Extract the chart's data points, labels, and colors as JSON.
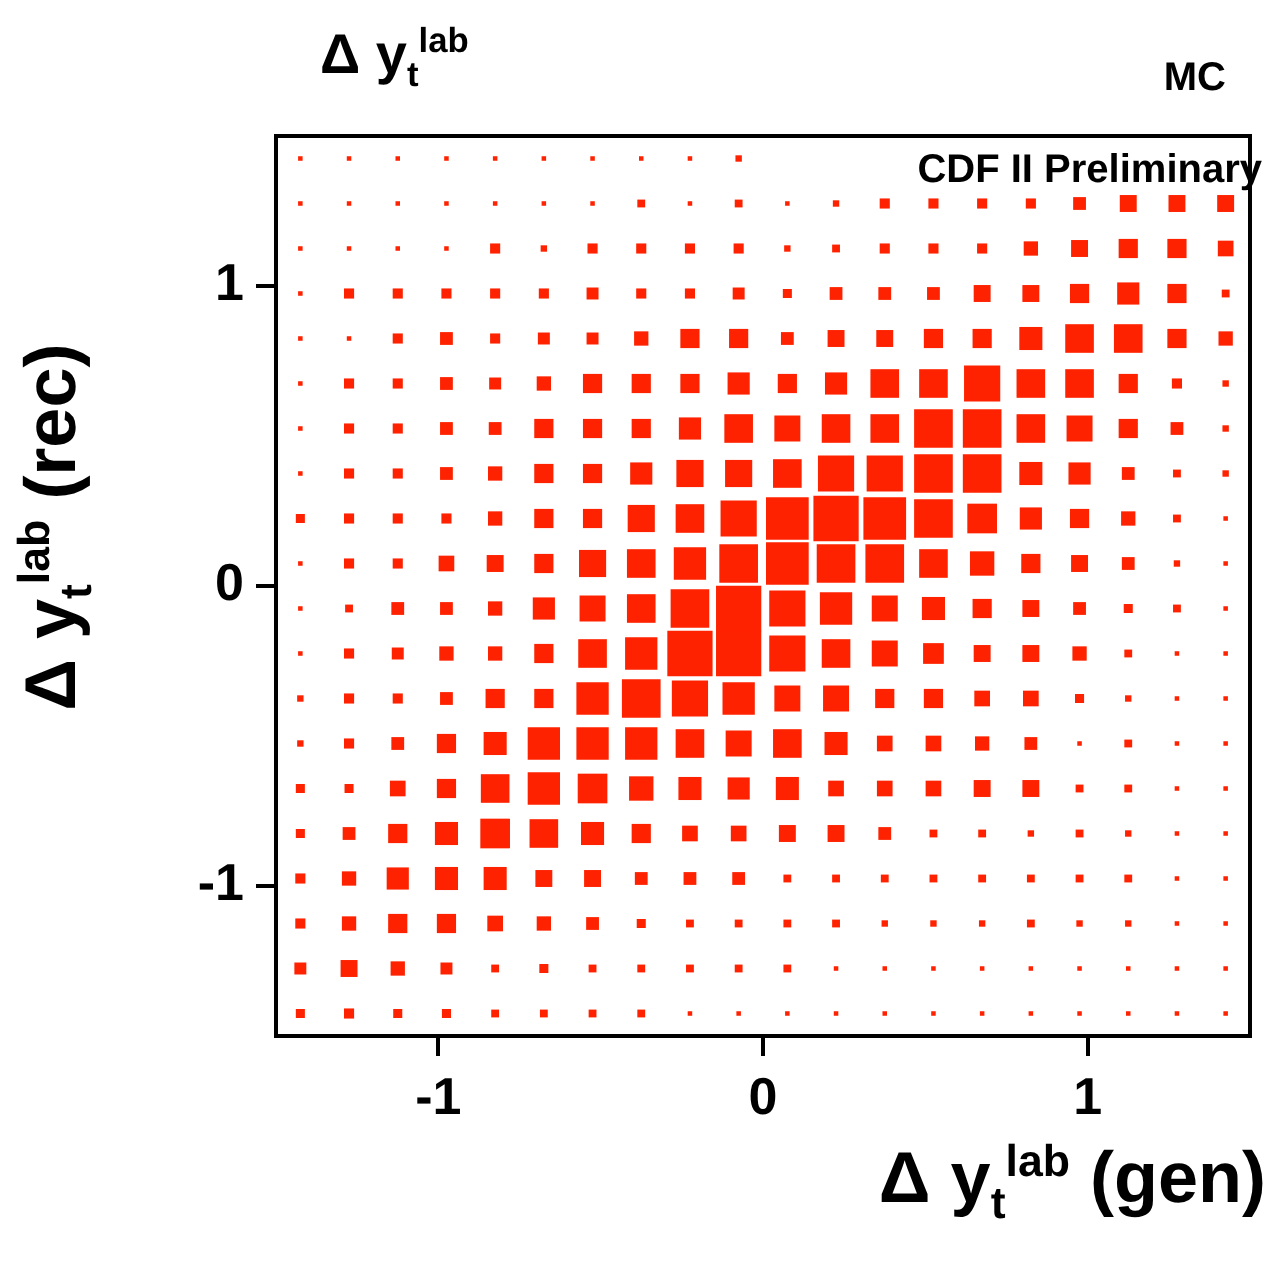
{
  "chart_data": {
    "type": "bubble",
    "title": "Δ y$_{t}$$^{lab}$",
    "xlabel": "Δ y$_{t}$$^{lab}$ (gen)",
    "ylabel": "Δ y$_{t}$$^{lab}$ (rec)",
    "annotations": [
      "MC",
      "CDF II Preliminary"
    ],
    "marker": "square",
    "xlim": [
      -1.5,
      1.5
    ],
    "ylim": [
      -1.5,
      1.5
    ],
    "xticks": [
      -1,
      0,
      1
    ],
    "yticks": [
      -1,
      0,
      1
    ],
    "x": [
      -1.425,
      -1.275,
      -1.125,
      -0.975,
      -0.825,
      -0.675,
      -0.525,
      -0.375,
      -0.225,
      -0.075,
      0.075,
      0.225,
      0.375,
      0.525,
      0.675,
      0.825,
      0.975,
      1.125,
      1.275,
      1.425
    ],
    "series": [
      {
        "color": "#ff2200",
        "values": [
          1.425,
          1.425,
          1.425,
          1.425,
          1.425,
          1.425,
          1.425,
          1.425,
          1.425,
          1.425,
          null,
          null,
          null,
          null,
          null,
          null,
          null,
          null,
          null,
          null
        ],
        "sizes": [
          0.01,
          0.01,
          0.01,
          0.01,
          0.01,
          0.01,
          0.01,
          0.01,
          0.01,
          0.02,
          null,
          null,
          null,
          null,
          null,
          null,
          null,
          null,
          null,
          null
        ]
      },
      {
        "color": "#ff2200",
        "values": [
          1.275,
          1.275,
          1.275,
          1.275,
          1.275,
          1.275,
          1.275,
          1.275,
          1.275,
          1.275,
          1.275,
          1.275,
          1.275,
          1.275,
          1.275,
          1.275,
          1.275,
          1.275,
          1.275,
          1.275
        ],
        "sizes": [
          0.01,
          0.01,
          0.01,
          0.01,
          0.01,
          0.01,
          0.01,
          0.03,
          0.01,
          0.03,
          0.01,
          0.02,
          0.05,
          0.05,
          0.05,
          0.05,
          0.08,
          0.14,
          0.14,
          0.14
        ]
      },
      {
        "color": "#ff2200",
        "values": [
          1.125,
          1.125,
          1.125,
          1.125,
          1.125,
          1.125,
          1.125,
          1.125,
          1.125,
          1.125,
          1.125,
          1.125,
          1.125,
          1.125,
          1.125,
          1.125,
          1.125,
          1.125,
          1.125,
          1.125
        ],
        "sizes": [
          0.01,
          0.01,
          0.01,
          0.01,
          0.05,
          0.02,
          0.05,
          0.05,
          0.05,
          0.05,
          0.02,
          0.03,
          0.05,
          0.05,
          0.05,
          0.1,
          0.14,
          0.18,
          0.18,
          0.12
        ]
      },
      {
        "color": "#ff2200",
        "values": [
          0.975,
          0.975,
          0.975,
          0.975,
          0.975,
          0.975,
          0.975,
          0.975,
          0.975,
          0.975,
          0.975,
          0.975,
          0.975,
          0.975,
          0.975,
          0.975,
          0.975,
          0.975,
          0.975,
          0.975
        ],
        "sizes": [
          0.01,
          0.05,
          0.05,
          0.05,
          0.05,
          0.05,
          0.07,
          0.05,
          0.05,
          0.07,
          0.04,
          0.08,
          0.08,
          0.08,
          0.14,
          0.14,
          0.18,
          0.24,
          0.18,
          0.03
        ]
      },
      {
        "color": "#ff2200",
        "values": [
          0.825,
          0.825,
          0.825,
          0.825,
          0.825,
          0.825,
          0.825,
          0.825,
          0.825,
          0.825,
          0.825,
          0.825,
          0.825,
          0.825,
          0.825,
          0.825,
          0.825,
          0.825,
          0.825,
          0.825
        ],
        "sizes": [
          0.01,
          0.01,
          0.05,
          0.08,
          0.05,
          0.07,
          0.07,
          0.1,
          0.18,
          0.18,
          0.08,
          0.14,
          0.14,
          0.18,
          0.18,
          0.26,
          0.4,
          0.4,
          0.18,
          0.1
        ]
      },
      {
        "color": "#ff2200",
        "values": [
          0.675,
          0.675,
          0.675,
          0.675,
          0.675,
          0.675,
          0.675,
          0.675,
          0.675,
          0.675,
          0.675,
          0.675,
          0.675,
          0.675,
          0.675,
          0.675,
          0.675,
          0.675,
          0.675,
          0.675
        ],
        "sizes": [
          0.01,
          0.05,
          0.05,
          0.08,
          0.07,
          0.1,
          0.18,
          0.18,
          0.18,
          0.24,
          0.18,
          0.24,
          0.4,
          0.4,
          0.64,
          0.4,
          0.4,
          0.18,
          0.05,
          0.02
        ]
      },
      {
        "color": "#ff2200",
        "values": [
          0.525,
          0.525,
          0.525,
          0.525,
          0.525,
          0.525,
          0.525,
          0.525,
          0.525,
          0.525,
          0.525,
          0.525,
          0.525,
          0.525,
          0.525,
          0.525,
          0.525,
          0.525,
          0.525,
          0.525
        ],
        "sizes": [
          0.01,
          0.05,
          0.05,
          0.08,
          0.08,
          0.18,
          0.18,
          0.18,
          0.24,
          0.4,
          0.33,
          0.4,
          0.4,
          0.73,
          0.73,
          0.4,
          0.33,
          0.18,
          0.08,
          0.02
        ]
      },
      {
        "color": "#ff2200",
        "values": [
          0.375,
          0.375,
          0.375,
          0.375,
          0.375,
          0.375,
          0.375,
          0.375,
          0.375,
          0.375,
          0.375,
          0.375,
          0.375,
          0.375,
          0.375,
          0.375,
          0.375,
          0.375,
          0.375,
          0.375
        ],
        "sizes": [
          0.01,
          0.05,
          0.05,
          0.08,
          0.1,
          0.18,
          0.18,
          0.24,
          0.36,
          0.36,
          0.4,
          0.64,
          0.64,
          0.73,
          0.73,
          0.26,
          0.24,
          0.08,
          0.03,
          0.02
        ]
      },
      {
        "color": "#ff2200",
        "values": [
          0.225,
          0.225,
          0.225,
          0.225,
          0.225,
          0.225,
          0.225,
          0.225,
          0.225,
          0.225,
          0.225,
          0.225,
          0.225,
          0.225,
          0.225,
          0.225,
          0.225,
          0.225,
          0.225,
          0.225
        ],
        "sizes": [
          0.04,
          0.05,
          0.05,
          0.05,
          0.1,
          0.18,
          0.18,
          0.36,
          0.4,
          0.64,
          0.89,
          1,
          0.89,
          0.73,
          0.43,
          0.24,
          0.18,
          0.1,
          0.03,
          0.01
        ]
      },
      {
        "color": "#ff2200",
        "values": [
          0.075,
          0.075,
          0.075,
          0.075,
          0.075,
          0.075,
          0.075,
          0.075,
          0.075,
          0.075,
          0.075,
          0.075,
          0.075,
          0.075,
          0.075,
          0.075,
          0.075,
          0.075,
          0.075,
          0.075
        ],
        "sizes": [
          0.01,
          0.05,
          0.05,
          0.12,
          0.14,
          0.18,
          0.36,
          0.4,
          0.51,
          0.73,
          0.89,
          0.73,
          0.73,
          0.4,
          0.29,
          0.18,
          0.14,
          0.08,
          0.02,
          0.01
        ]
      },
      {
        "color": "#ff2200",
        "values": [
          -0.075,
          -0.075,
          -0.075,
          -0.075,
          -0.075,
          -0.075,
          -0.075,
          -0.075,
          -0.075,
          -0.075,
          -0.075,
          -0.075,
          -0.075,
          -0.075,
          -0.075,
          -0.075,
          -0.075,
          -0.075,
          -0.075,
          -0.075
        ],
        "sizes": [
          0.01,
          0.03,
          0.08,
          0.08,
          0.1,
          0.24,
          0.33,
          0.4,
          0.73,
          1,
          0.64,
          0.51,
          0.33,
          0.26,
          0.18,
          0.14,
          0.08,
          0.04,
          0.03,
          0.01
        ]
      },
      {
        "color": "#ff2200",
        "values": [
          -0.225,
          -0.225,
          -0.225,
          -0.225,
          -0.225,
          -0.225,
          -0.225,
          -0.225,
          -0.225,
          -0.225,
          -0.225,
          -0.225,
          -0.225,
          -0.225,
          -0.225,
          -0.225,
          -0.225,
          -0.225,
          -0.225,
          -0.225
        ],
        "sizes": [
          0.01,
          0.05,
          0.07,
          0.1,
          0.1,
          0.18,
          0.4,
          0.51,
          1,
          1,
          0.64,
          0.4,
          0.33,
          0.21,
          0.14,
          0.14,
          0.1,
          0.03,
          0.01,
          0.01
        ]
      },
      {
        "color": "#ff2200",
        "values": [
          -0.375,
          -0.375,
          -0.375,
          -0.375,
          -0.375,
          -0.375,
          -0.375,
          -0.375,
          -0.375,
          -0.375,
          -0.375,
          -0.375,
          -0.375,
          -0.375,
          -0.375,
          -0.375,
          -0.375,
          -0.375,
          -0.375,
          -0.375
        ],
        "sizes": [
          0.02,
          0.05,
          0.05,
          0.08,
          0.18,
          0.18,
          0.51,
          0.73,
          0.64,
          0.51,
          0.33,
          0.33,
          0.18,
          0.18,
          0.12,
          0.12,
          0.04,
          0.02,
          0.01,
          0.01
        ]
      },
      {
        "color": "#ff2200",
        "values": [
          -0.525,
          -0.525,
          -0.525,
          -0.525,
          -0.525,
          -0.525,
          -0.525,
          -0.525,
          -0.525,
          -0.525,
          -0.525,
          -0.525,
          -0.525,
          -0.525,
          -0.525,
          -0.525,
          -0.525,
          -0.525,
          -0.525,
          -0.525
        ],
        "sizes": [
          0.02,
          0.05,
          0.08,
          0.18,
          0.26,
          0.51,
          0.51,
          0.51,
          0.4,
          0.33,
          0.4,
          0.26,
          0.12,
          0.12,
          0.1,
          0.08,
          0.01,
          0.03,
          0.01,
          0.01
        ]
      },
      {
        "color": "#ff2200",
        "values": [
          -0.675,
          -0.675,
          -0.675,
          -0.675,
          -0.675,
          -0.675,
          -0.675,
          -0.675,
          -0.675,
          -0.675,
          -0.675,
          -0.675,
          -0.675,
          -0.675,
          -0.675,
          -0.675,
          -0.675,
          -0.675,
          -0.675,
          -0.675
        ],
        "sizes": [
          0.04,
          0.04,
          0.12,
          0.18,
          0.4,
          0.51,
          0.43,
          0.29,
          0.26,
          0.24,
          0.26,
          0.12,
          0.12,
          0.12,
          0.14,
          0.14,
          0.03,
          0.03,
          0.01,
          0.01
        ]
      },
      {
        "color": "#ff2200",
        "values": [
          -0.825,
          -0.825,
          -0.825,
          -0.825,
          -0.825,
          -0.825,
          -0.825,
          -0.825,
          -0.825,
          -0.825,
          -0.825,
          -0.825,
          -0.825,
          -0.825,
          -0.825,
          -0.825,
          -0.825,
          -0.825,
          -0.825,
          -0.825
        ],
        "sizes": [
          0.04,
          0.08,
          0.18,
          0.26,
          0.43,
          0.4,
          0.26,
          0.18,
          0.12,
          0.12,
          0.14,
          0.14,
          0.08,
          0.03,
          0.03,
          0.02,
          0.03,
          0.02,
          0.01,
          0.01
        ]
      },
      {
        "color": "#ff2200",
        "values": [
          -0.975,
          -0.975,
          -0.975,
          -0.975,
          -0.975,
          -0.975,
          -0.975,
          -0.975,
          -0.975,
          -0.975,
          -0.975,
          -0.975,
          -0.975,
          -0.975,
          -0.975,
          -0.975,
          -0.975,
          -0.975,
          -0.975,
          -0.975
        ],
        "sizes": [
          0.05,
          0.1,
          0.24,
          0.26,
          0.26,
          0.14,
          0.14,
          0.08,
          0.08,
          0.08,
          0.03,
          0.03,
          0.03,
          0.03,
          0.03,
          0.03,
          0.03,
          0.03,
          0.01,
          0.01
        ]
      },
      {
        "color": "#ff2200",
        "values": [
          -1.125,
          -1.125,
          -1.125,
          -1.125,
          -1.125,
          -1.125,
          -1.125,
          -1.125,
          -1.125,
          -1.125,
          -1.125,
          -1.125,
          -1.125,
          -1.125,
          -1.125,
          -1.125,
          -1.125,
          -1.125,
          -1.125,
          -1.125
        ],
        "sizes": [
          0.05,
          0.1,
          0.18,
          0.18,
          0.12,
          0.1,
          0.08,
          0.04,
          0.03,
          0.03,
          0.03,
          0.03,
          0.02,
          0.02,
          0.02,
          0.03,
          0.02,
          0.02,
          0.01,
          0.01
        ]
      },
      {
        "color": "#ff2200",
        "values": [
          -1.275,
          -1.275,
          -1.275,
          -1.275,
          -1.275,
          -1.275,
          -1.275,
          -1.275,
          -1.275,
          -1.275,
          -1.275,
          -1.275,
          -1.275,
          -1.275,
          -1.275,
          -1.275,
          -1.275,
          -1.275,
          -1.275,
          -1.275
        ],
        "sizes": [
          0.07,
          0.14,
          0.1,
          0.07,
          0.03,
          0.04,
          0.03,
          0.03,
          0.03,
          0.03,
          0.03,
          0.01,
          0.01,
          0.01,
          0.01,
          0.01,
          0.01,
          0.01,
          0.01,
          0.01
        ]
      },
      {
        "color": "#ff2200",
        "values": [
          -1.425,
          -1.425,
          -1.425,
          -1.425,
          -1.425,
          -1.425,
          -1.425,
          -1.425,
          -1.425,
          -1.425,
          -1.425,
          -1.425,
          -1.425,
          -1.425,
          -1.425,
          -1.425,
          -1.425,
          -1.425,
          -1.425,
          -1.425
        ],
        "sizes": [
          0.04,
          0.05,
          0.04,
          0.04,
          0.03,
          0.03,
          0.03,
          0.03,
          0.01,
          0.01,
          0.01,
          0.01,
          0.01,
          0.01,
          0.01,
          0.01,
          0.01,
          0.01,
          0.01,
          0.01
        ]
      }
    ]
  }
}
